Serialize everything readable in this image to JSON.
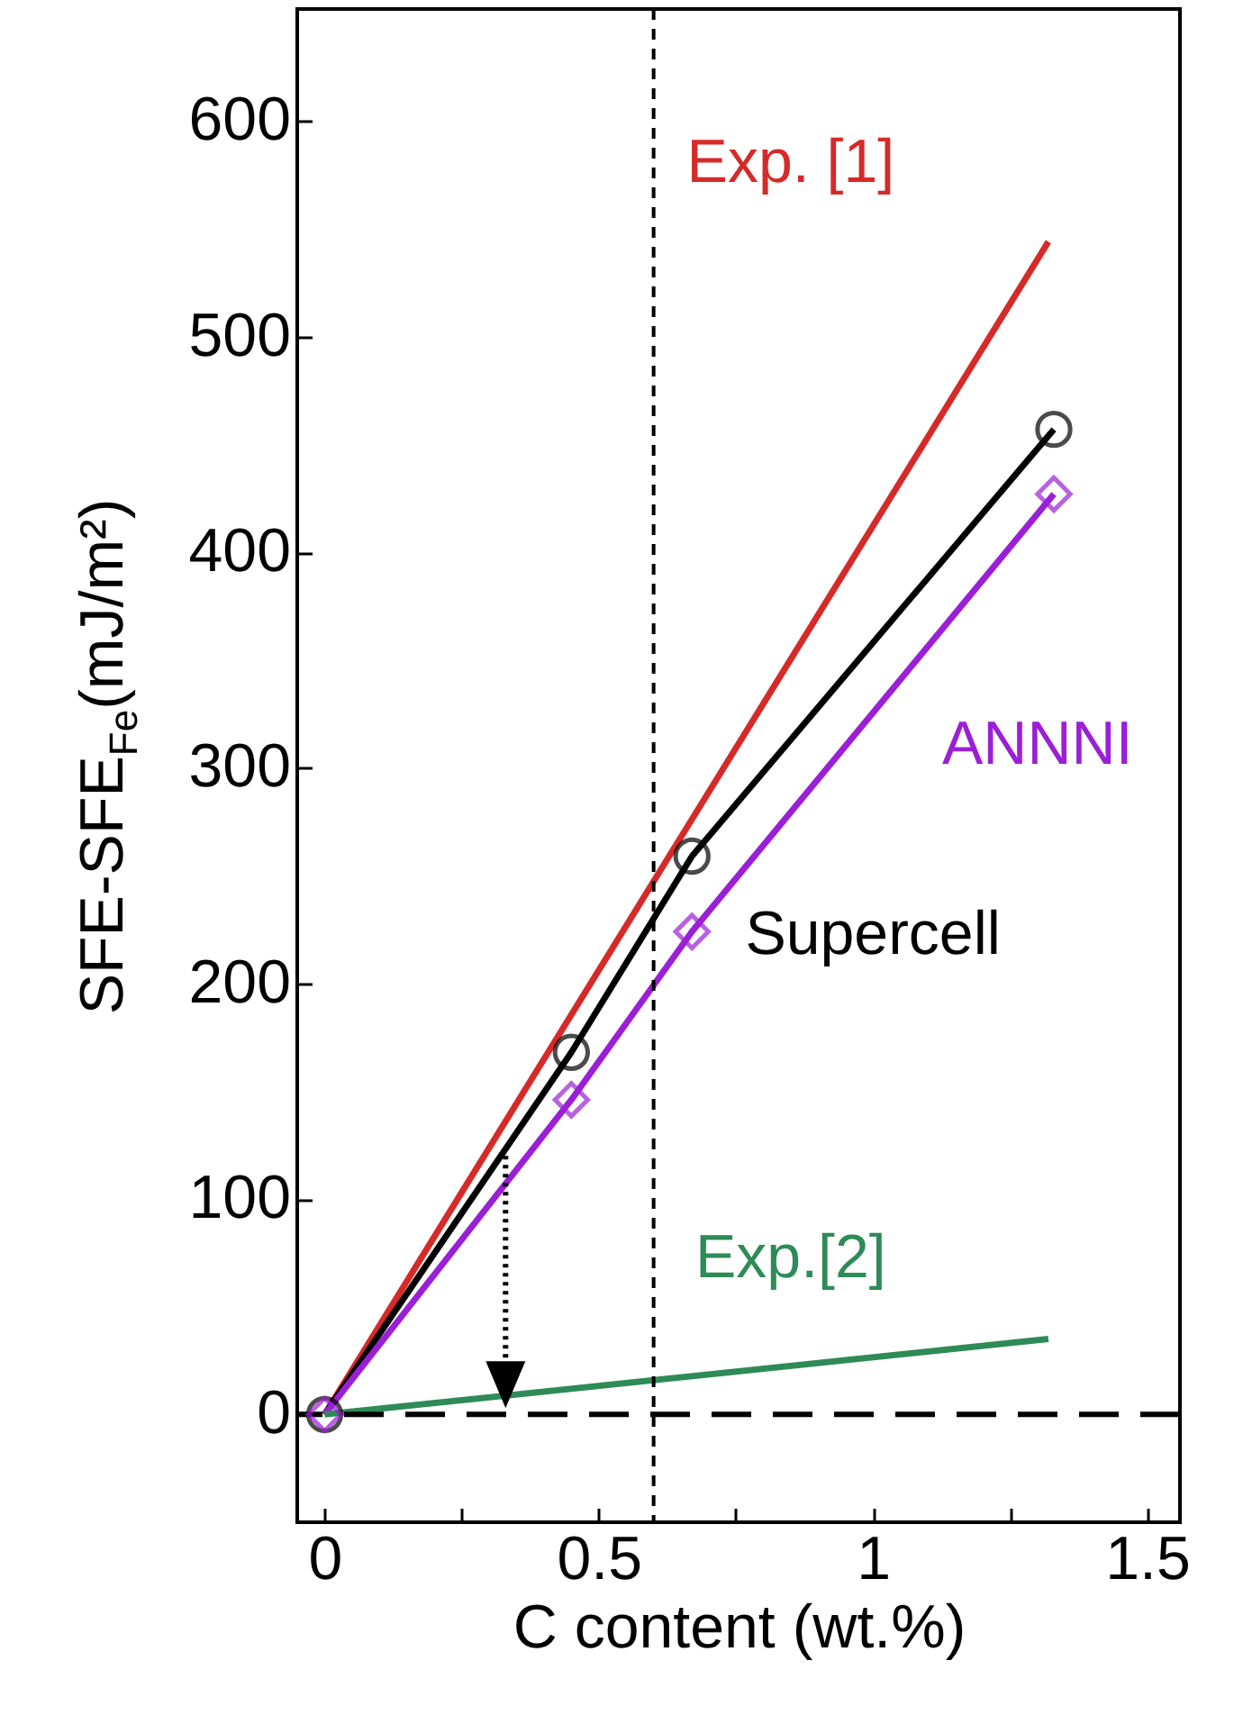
{
  "chart_data": {
    "type": "line",
    "xlabel": "C content (wt.%)",
    "ylabel": "SFE-SFE$_{Fe}$(mJ/m²)",
    "xlim": [
      -0.05,
      1.56
    ],
    "ylim": [
      -50,
      652
    ],
    "xticks": [
      0,
      {
        "value": 0.25,
        "label": null
      },
      0.5,
      {
        "value": 0.75,
        "label": null
      },
      1,
      {
        "value": 1.25,
        "label": null
      },
      1.5
    ],
    "yticks": [
      0,
      100,
      200,
      300,
      400,
      500,
      600
    ],
    "grid": false,
    "series": [
      {
        "name": "Exp. [1]",
        "color": "#d62a28",
        "x": [
          0,
          1.32
        ],
        "values": [
          0,
          544
        ],
        "marker": "none"
      },
      {
        "name": "Supercell",
        "color": "#000000",
        "x": [
          0,
          0.45,
          0.67,
          1.33
        ],
        "values": [
          0,
          168,
          259,
          457
        ],
        "marker": "circle"
      },
      {
        "name": "ANNNI",
        "color": "#9b1fd6",
        "x": [
          0,
          0.45,
          0.67,
          1.33
        ],
        "values": [
          0,
          146,
          224,
          427
        ],
        "marker": "diamond"
      },
      {
        "name": "Exp.[2]",
        "color": "#2e8b57",
        "x": [
          0,
          1.32
        ],
        "values": [
          0,
          35
        ],
        "marker": "none"
      }
    ],
    "ref_lines": [
      {
        "axis": "y",
        "value": 0,
        "label": null,
        "line_style": "dashed",
        "color": "#000000"
      },
      {
        "axis": "x",
        "value": 0.6,
        "label": null,
        "line_style": "dashed",
        "color": "#000000"
      }
    ]
  }
}
